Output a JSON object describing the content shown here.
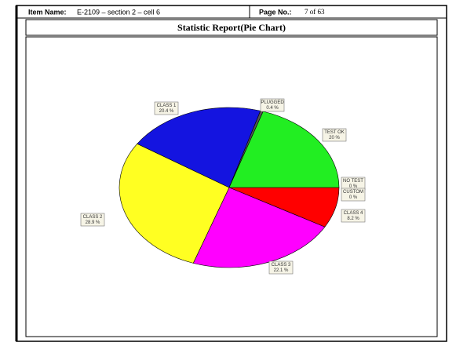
{
  "header": {
    "item_name_label": "Item Name:",
    "item_name": "E-2109 – section 2 – cell 6",
    "page_label": "Page No.:",
    "page_no": "7 of 63"
  },
  "chart_data": {
    "type": "pie",
    "title": "Statistic Report(Pie Chart)",
    "categories": [
      "NO TEST",
      "CUSTOM",
      "CLASS 4",
      "CLASS 3",
      "CLASS 2",
      "CLASS 1",
      "PLUGGED",
      "TEST OK"
    ],
    "values": [
      0,
      0,
      8.2,
      22.1,
      28.9,
      20.4,
      0.4,
      20
    ],
    "value_labels": [
      "0 %",
      "0 %",
      "8.2 %",
      "22.1 %",
      "28.9 %",
      "20.4 %",
      "0.4 %",
      "20 %"
    ],
    "colors": [
      "#ffffff",
      "#ffffff",
      "#ff0000",
      "#ff00ff",
      "#ffff22",
      "#1414e0",
      "#555555",
      "#22ee22"
    ]
  }
}
